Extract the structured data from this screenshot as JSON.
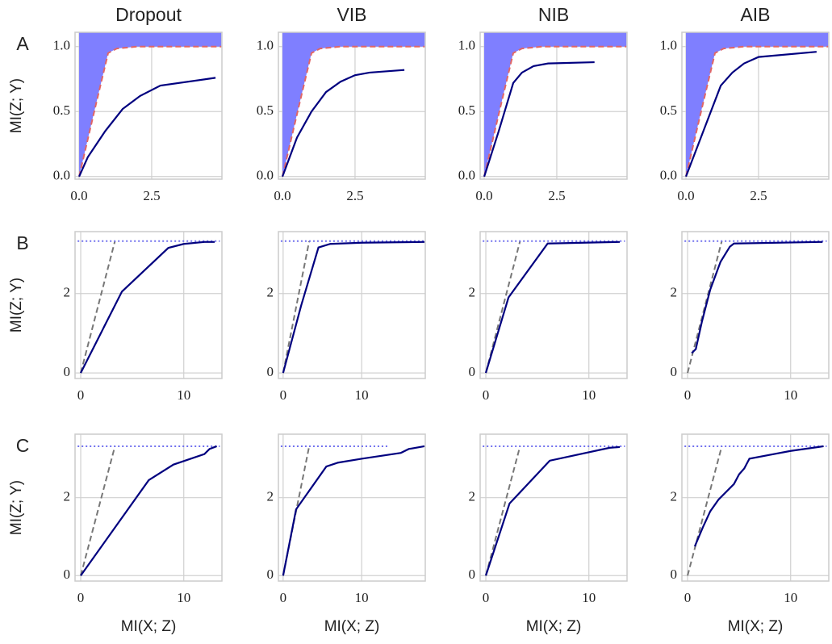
{
  "chart_data": [
    {
      "type": "line",
      "title": "Dropout",
      "panel_label": "A",
      "ylabel": "MI(Z; Y)",
      "xlim": [
        -0.14,
        4.92
      ],
      "ylim": [
        -0.02,
        1.11
      ],
      "xticks": [
        {
          "value": 0,
          "label": "0.0"
        },
        2.5
      ],
      "yticks": [
        {
          "value": 0,
          "label": "0.0"
        },
        0.5,
        {
          "value": 1,
          "label": "1.0"
        }
      ],
      "grid": true,
      "series": [
        {
          "color": "#e06666",
          "style": "dashed",
          "fill": "#7f7fff",
          "x": [
            0,
            0.5,
            1,
            1.3,
            2,
            4.9
          ],
          "values": [
            0,
            0.48,
            0.95,
            0.985,
            1,
            1
          ]
        },
        {
          "color": "#00007f",
          "style": "solid",
          "x": [
            0,
            0.3,
            0.9,
            1.5,
            2.1,
            2.8,
            4.7
          ],
          "values": [
            0,
            0.15,
            0.35,
            0.52,
            0.62,
            0.7,
            0.76
          ]
        }
      ]
    },
    {
      "type": "line",
      "title": "VIB",
      "xlim": [
        -0.14,
        4.92
      ],
      "ylim": [
        -0.02,
        1.11
      ],
      "xticks": [
        {
          "value": 0,
          "label": "0.0"
        },
        2.5
      ],
      "yticks": [
        {
          "value": 0,
          "label": "0.0"
        },
        0.5,
        {
          "value": 1,
          "label": "1.0"
        }
      ],
      "grid": true,
      "series": [
        {
          "color": "#e06666",
          "style": "dashed",
          "fill": "#7f7fff",
          "x": [
            0,
            0.5,
            1,
            1.3,
            2,
            4.9
          ],
          "values": [
            0,
            0.48,
            0.95,
            0.985,
            1,
            1
          ]
        },
        {
          "color": "#00007f",
          "style": "solid",
          "x": [
            0,
            0.5,
            1,
            1.5,
            2,
            2.5,
            3,
            4.2
          ],
          "values": [
            0,
            0.3,
            0.5,
            0.65,
            0.73,
            0.78,
            0.8,
            0.82
          ]
        }
      ]
    },
    {
      "type": "line",
      "title": "NIB",
      "xlim": [
        -0.14,
        4.92
      ],
      "ylim": [
        -0.02,
        1.11
      ],
      "xticks": [
        {
          "value": 0,
          "label": "0.0"
        },
        2.5
      ],
      "yticks": [
        {
          "value": 0,
          "label": "0.0"
        },
        0.5,
        {
          "value": 1,
          "label": "1.0"
        }
      ],
      "grid": true,
      "series": [
        {
          "color": "#e06666",
          "style": "dashed",
          "fill": "#7f7fff",
          "x": [
            0,
            0.5,
            1,
            1.3,
            2,
            4.9
          ],
          "values": [
            0,
            0.48,
            0.95,
            0.985,
            1,
            1
          ]
        },
        {
          "color": "#00007f",
          "style": "solid",
          "x": [
            0,
            0.5,
            1,
            1.3,
            1.7,
            2.2,
            3.8
          ],
          "values": [
            0,
            0.35,
            0.72,
            0.8,
            0.85,
            0.87,
            0.88
          ]
        }
      ]
    },
    {
      "type": "line",
      "title": "AIB",
      "xlim": [
        -0.14,
        4.92
      ],
      "ylim": [
        -0.02,
        1.11
      ],
      "xticks": [
        {
          "value": 0,
          "label": "0.0"
        },
        2.5
      ],
      "yticks": [
        {
          "value": 0,
          "label": "0.0"
        },
        0.5,
        {
          "value": 1,
          "label": "1.0"
        }
      ],
      "grid": true,
      "series": [
        {
          "color": "#e06666",
          "style": "dashed",
          "fill": "#7f7fff",
          "x": [
            0,
            0.5,
            1,
            1.3,
            2,
            4.9
          ],
          "values": [
            0,
            0.48,
            0.95,
            0.985,
            1,
            1
          ]
        },
        {
          "color": "#00007f",
          "style": "solid",
          "x": [
            0,
            0.6,
            1.2,
            1.6,
            2,
            2.5,
            4.5
          ],
          "values": [
            0,
            0.35,
            0.7,
            0.8,
            0.87,
            0.92,
            0.96
          ]
        }
      ]
    },
    {
      "type": "line",
      "panel_label": "B",
      "ylabel": "MI(Z; Y)",
      "xlim": [
        -0.55,
        13.7
      ],
      "ylim": [
        -0.14,
        3.56
      ],
      "xticks": [
        0,
        10
      ],
      "yticks": [
        0,
        2
      ],
      "grid": true,
      "series": [
        {
          "color": "#777777",
          "style": "dashed",
          "x": [
            0,
            3.32
          ],
          "values": [
            0,
            3.32
          ]
        },
        {
          "color": "#7070ee",
          "style": "dotted",
          "x": [
            -0.3,
            13.5
          ],
          "values": [
            3.32,
            3.32
          ]
        },
        {
          "color": "#00007f",
          "style": "solid",
          "x": [
            0,
            4,
            8.5,
            10,
            12,
            13
          ],
          "values": [
            0,
            2.05,
            3.15,
            3.25,
            3.3,
            3.3
          ]
        }
      ]
    },
    {
      "type": "line",
      "xlim": [
        -0.6,
        18.1
      ],
      "ylim": [
        -0.14,
        3.56
      ],
      "xticks": [
        0,
        10
      ],
      "yticks": [
        0,
        2
      ],
      "grid": true,
      "series": [
        {
          "color": "#777777",
          "style": "dashed",
          "x": [
            0,
            3.32
          ],
          "values": [
            0,
            3.32
          ]
        },
        {
          "color": "#7070ee",
          "style": "dotted",
          "x": [
            -0.3,
            18
          ],
          "values": [
            3.32,
            3.32
          ]
        },
        {
          "color": "#00007f",
          "style": "solid",
          "x": [
            0,
            2.3,
            4.5,
            6,
            10,
            18
          ],
          "values": [
            0,
            1.7,
            3.16,
            3.25,
            3.28,
            3.3
          ]
        }
      ]
    },
    {
      "type": "line",
      "xlim": [
        -0.55,
        13.7
      ],
      "ylim": [
        -0.14,
        3.56
      ],
      "xticks": [
        0,
        10
      ],
      "yticks": [
        0,
        2
      ],
      "grid": true,
      "series": [
        {
          "color": "#777777",
          "style": "dashed",
          "x": [
            0,
            3.32
          ],
          "values": [
            0,
            3.32
          ]
        },
        {
          "color": "#7070ee",
          "style": "dotted",
          "x": [
            -0.3,
            13.5
          ],
          "values": [
            3.32,
            3.32
          ]
        },
        {
          "color": "#00007f",
          "style": "solid",
          "x": [
            0,
            2.2,
            6,
            13
          ],
          "values": [
            0,
            1.9,
            3.26,
            3.3
          ]
        }
      ]
    },
    {
      "type": "line",
      "xlim": [
        -0.55,
        13.7
      ],
      "ylim": [
        -0.14,
        3.56
      ],
      "xticks": [
        0,
        10
      ],
      "yticks": [
        0,
        2
      ],
      "grid": true,
      "series": [
        {
          "color": "#777777",
          "style": "dashed",
          "x": [
            0,
            3.32
          ],
          "values": [
            0,
            3.32
          ]
        },
        {
          "color": "#7070ee",
          "style": "dotted",
          "x": [
            -0.3,
            13.5
          ],
          "values": [
            3.32,
            3.32
          ]
        },
        {
          "color": "#00007f",
          "style": "solid",
          "x": [
            0.4,
            0.8,
            1.4,
            2.2,
            3.2,
            4.1,
            4.5,
            13.1
          ],
          "values": [
            0.5,
            0.6,
            1.3,
            2.1,
            2.8,
            3.18,
            3.26,
            3.3
          ]
        }
      ]
    },
    {
      "type": "line",
      "panel_label": "C",
      "ylabel": "MI(Z; Y)",
      "xlabel": "MI(X; Z)",
      "xlim": [
        -0.55,
        13.7
      ],
      "ylim": [
        -0.14,
        3.63
      ],
      "xticks": [
        0,
        10
      ],
      "yticks": [
        0,
        2
      ],
      "grid": true,
      "series": [
        {
          "color": "#777777",
          "style": "dashed",
          "x": [
            0,
            3.32
          ],
          "values": [
            0,
            3.32
          ]
        },
        {
          "color": "#7070ee",
          "style": "dotted",
          "x": [
            -0.3,
            13.5
          ],
          "values": [
            3.32,
            3.32
          ]
        },
        {
          "color": "#00007f",
          "style": "solid",
          "x": [
            0,
            6.6,
            9,
            12,
            12.5,
            13.2
          ],
          "values": [
            0,
            2.45,
            2.85,
            3.12,
            3.25,
            3.32
          ]
        }
      ]
    },
    {
      "type": "line",
      "xlabel": "MI(X; Z)",
      "xlim": [
        -0.6,
        18.1
      ],
      "ylim": [
        -0.14,
        3.63
      ],
      "xticks": [
        0,
        10
      ],
      "yticks": [
        0,
        2
      ],
      "grid": true,
      "series": [
        {
          "color": "#777777",
          "style": "dashed",
          "x": [
            0,
            3.32
          ],
          "values": [
            0,
            3.32
          ]
        },
        {
          "color": "#7070ee",
          "style": "dotted",
          "x": [
            -0.3,
            13.3
          ],
          "values": [
            3.32,
            3.32
          ]
        },
        {
          "color": "#00007f",
          "style": "solid",
          "x": [
            0,
            1.65,
            5.5,
            7,
            10,
            15,
            16,
            18
          ],
          "values": [
            0,
            1.7,
            2.8,
            2.9,
            3,
            3.15,
            3.25,
            3.32
          ]
        }
      ]
    },
    {
      "type": "line",
      "xlabel": "MI(X; Z)",
      "xlim": [
        -0.55,
        13.7
      ],
      "ylim": [
        -0.14,
        3.63
      ],
      "xticks": [
        0,
        10
      ],
      "yticks": [
        0,
        2
      ],
      "grid": true,
      "series": [
        {
          "color": "#777777",
          "style": "dashed",
          "x": [
            0,
            3.32
          ],
          "values": [
            0,
            3.32
          ]
        },
        {
          "color": "#7070ee",
          "style": "dotted",
          "x": [
            -0.3,
            13.5
          ],
          "values": [
            3.32,
            3.32
          ]
        },
        {
          "color": "#00007f",
          "style": "solid",
          "x": [
            0,
            2.3,
            6.2,
            12,
            13
          ],
          "values": [
            0,
            1.85,
            2.95,
            3.28,
            3.3
          ]
        }
      ]
    },
    {
      "type": "line",
      "xlabel": "MI(X; Z)",
      "xlim": [
        -0.55,
        13.7
      ],
      "ylim": [
        -0.14,
        3.63
      ],
      "xticks": [
        0,
        10
      ],
      "yticks": [
        0,
        2
      ],
      "grid": true,
      "series": [
        {
          "color": "#777777",
          "style": "dashed",
          "x": [
            0,
            3.32
          ],
          "values": [
            0,
            3.32
          ]
        },
        {
          "color": "#7070ee",
          "style": "dotted",
          "x": [
            -0.3,
            13.5
          ],
          "values": [
            3.32,
            3.32
          ]
        },
        {
          "color": "#00007f",
          "style": "solid",
          "x": [
            0.7,
            1.5,
            2.2,
            3,
            4.5,
            5,
            5.5,
            6,
            8,
            10,
            13.2
          ],
          "values": [
            0.75,
            1.25,
            1.65,
            1.95,
            2.35,
            2.6,
            2.75,
            3,
            3.1,
            3.2,
            3.32
          ]
        }
      ]
    }
  ]
}
